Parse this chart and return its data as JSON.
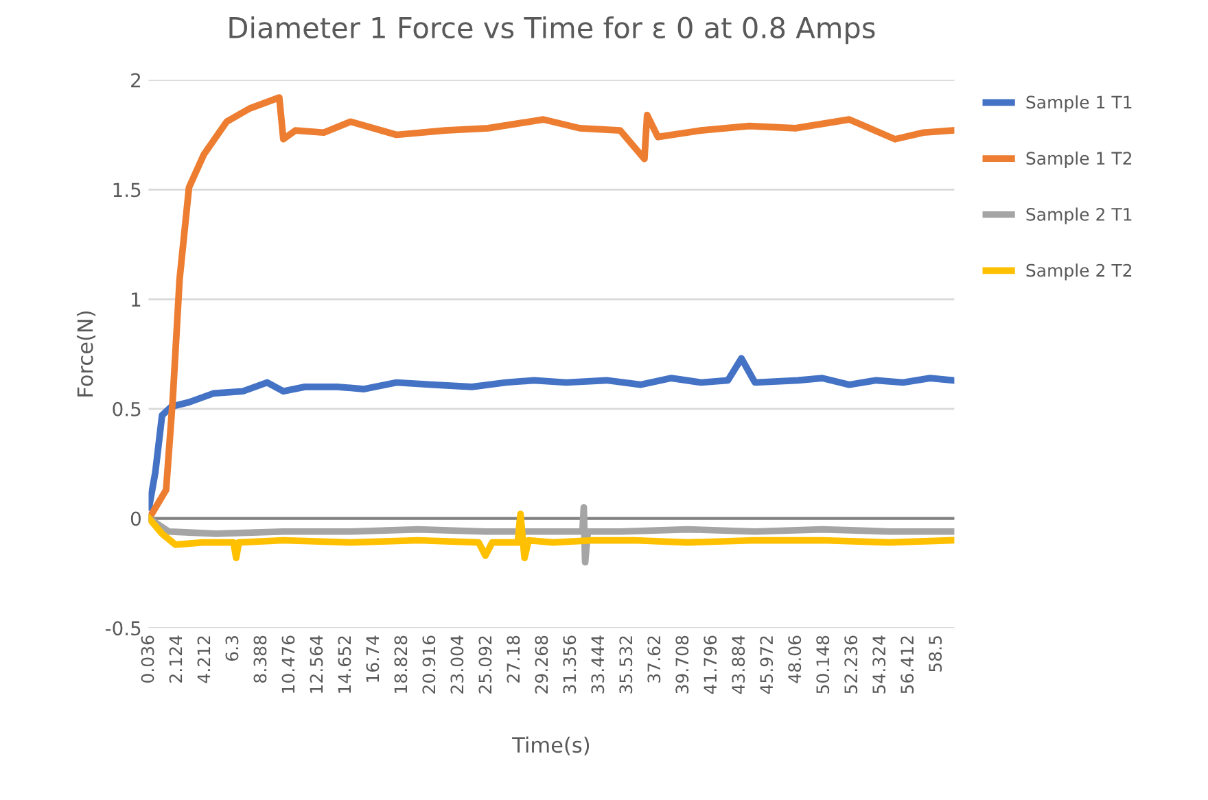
{
  "chart_data": {
    "type": "line",
    "title": "Diameter 1 Force vs Time for ε 0 at 0.8 Amps",
    "xlabel": "Time(s)",
    "ylabel": "Force(N)",
    "xlim": [
      0,
      59.8
    ],
    "xticks": [
      0.036,
      2.124,
      4.212,
      6.3,
      8.388,
      10.476,
      12.564,
      14.652,
      16.74,
      18.828,
      20.916,
      23.004,
      25.092,
      27.18,
      29.268,
      31.356,
      33.444,
      35.532,
      37.62,
      39.708,
      41.796,
      43.884,
      45.972,
      48.06,
      50.148,
      52.236,
      54.324,
      56.412,
      58.5
    ],
    "ylim": [
      -0.5,
      2
    ],
    "yticks": [
      -0.5,
      0,
      0.5,
      1,
      1.5,
      2
    ],
    "grid": "y",
    "legend": "right",
    "marker": "none",
    "line_style": "solid",
    "ref_lines": [
      {
        "axis": "y",
        "value": 0,
        "color": "#808080"
      }
    ],
    "series": [
      {
        "name": "Sample 1 T1",
        "color": "#4472c4",
        "x": [
          0.036,
          0.5,
          1.0,
          1.7,
          3.0,
          4.8,
          7.0,
          8.8,
          10.0,
          11.6,
          14.0,
          16.0,
          18.4,
          21.0,
          24.0,
          26.5,
          28.6,
          31.0,
          34.0,
          36.5,
          38.8,
          41.0,
          43.0,
          44.0,
          45.0,
          48.2,
          50.0,
          52.0,
          54.0,
          56.0,
          58.0,
          59.7
        ],
        "values": [
          0.05,
          0.21,
          0.47,
          0.51,
          0.53,
          0.57,
          0.58,
          0.62,
          0.58,
          0.6,
          0.6,
          0.59,
          0.62,
          0.61,
          0.6,
          0.62,
          0.63,
          0.62,
          0.63,
          0.61,
          0.64,
          0.62,
          0.63,
          0.73,
          0.62,
          0.63,
          0.64,
          0.61,
          0.63,
          0.62,
          0.64,
          0.63
        ]
      },
      {
        "name": "Sample 1 T2",
        "color": "#ed7d31",
        "x": [
          0.036,
          1.3,
          1.8,
          2.3,
          3.0,
          4.1,
          5.8,
          7.5,
          9.7,
          10.0,
          10.9,
          13.0,
          15.0,
          18.4,
          22.0,
          25.2,
          29.3,
          32.0,
          35.0,
          36.8,
          37.0,
          37.8,
          41.0,
          44.6,
          48.0,
          52.0,
          55.4,
          57.5,
          59.7
        ],
        "values": [
          0,
          0.13,
          0.55,
          1.09,
          1.51,
          1.66,
          1.81,
          1.87,
          1.92,
          1.73,
          1.77,
          1.76,
          1.81,
          1.75,
          1.77,
          1.78,
          1.82,
          1.78,
          1.77,
          1.64,
          1.84,
          1.74,
          1.77,
          1.79,
          1.78,
          1.82,
          1.73,
          1.76,
          1.77
        ]
      },
      {
        "name": "Sample 2 T1",
        "color": "#a5a5a5",
        "x": [
          0.036,
          1.5,
          5.0,
          10.0,
          15.0,
          20.0,
          25.0,
          30.0,
          32.2,
          32.3,
          32.4,
          32.6,
          35.0,
          40.0,
          45.0,
          50.0,
          55.0,
          59.7
        ],
        "values": [
          0,
          -0.06,
          -0.07,
          -0.06,
          -0.06,
          -0.05,
          -0.06,
          -0.06,
          -0.06,
          0.05,
          -0.2,
          -0.06,
          -0.06,
          -0.05,
          -0.06,
          -0.05,
          -0.06,
          -0.06
        ]
      },
      {
        "name": "Sample 2 T2",
        "color": "#ffc000",
        "x": [
          0.036,
          1.0,
          2.0,
          4.0,
          6.3,
          6.5,
          6.7,
          10.0,
          15.0,
          20.0,
          24.5,
          25.0,
          25.5,
          27.4,
          27.6,
          27.9,
          28.2,
          30.0,
          33.0,
          36.0,
          40.0,
          45.0,
          50.0,
          55.0,
          59.7
        ],
        "values": [
          0,
          -0.07,
          -0.12,
          -0.11,
          -0.11,
          -0.18,
          -0.11,
          -0.1,
          -0.11,
          -0.1,
          -0.11,
          -0.17,
          -0.11,
          -0.11,
          0.02,
          -0.18,
          -0.1,
          -0.11,
          -0.1,
          -0.1,
          -0.11,
          -0.1,
          -0.1,
          -0.11,
          -0.1
        ]
      }
    ]
  }
}
